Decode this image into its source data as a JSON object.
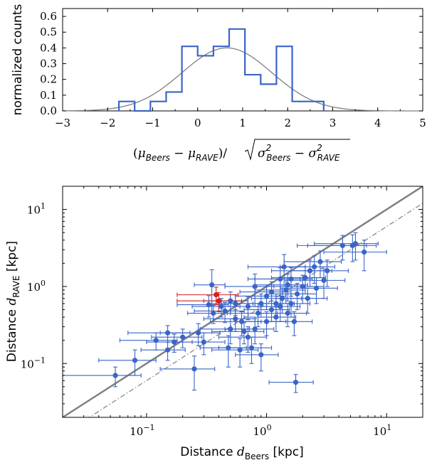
{
  "chart_data": [
    {
      "type": "histogram",
      "xlabel": "(μ_Beers − μ_RAVE)/√(σ²_Beers − σ²_RAVE)",
      "xlabel_parts": {
        "open": "(",
        "mu": "μ",
        "beers": "Beers",
        "minus": "−",
        "rave": "RAVE",
        "close": ")/",
        "sigma": "σ",
        "sq": "2"
      },
      "ylabel": "normalized counts",
      "xlim": [
        -3,
        5
      ],
      "ylim": [
        0,
        0.65
      ],
      "xticks": [
        "−3",
        "−2",
        "−1",
        "0",
        "1",
        "2",
        "3",
        "4",
        "5"
      ],
      "xtick_values": [
        -3,
        -2,
        -1,
        0,
        1,
        2,
        3,
        4,
        5
      ],
      "yticks": [
        "0.0",
        "0.1",
        "0.2",
        "0.3",
        "0.4",
        "0.5",
        "0.6"
      ],
      "ytick_values": [
        0,
        0.1,
        0.2,
        0.3,
        0.4,
        0.5,
        0.6
      ],
      "bin_edges": [
        -1.75,
        -1.4,
        -1.05,
        -0.7,
        -0.35,
        0.0,
        0.35,
        0.7,
        1.05,
        1.4,
        1.75,
        2.1,
        2.45,
        2.8
      ],
      "counts": [
        0.06,
        0.0,
        0.06,
        0.12,
        0.41,
        0.35,
        0.41,
        0.52,
        0.23,
        0.17,
        0.41,
        0.06,
        0.06
      ],
      "gaussian": {
        "mean": 0.65,
        "sigma": 1.0,
        "amplitude": 0.4
      },
      "colors": {
        "histogram": "#3a64c8",
        "gaussian": "#808080"
      }
    },
    {
      "type": "scatter",
      "xscale": "log",
      "yscale": "log",
      "xlabel": "Distance d_Beers [kpc]",
      "xlabel_parts": {
        "word": "Distance ",
        "var": "d",
        "sub": "Beers",
        "unit": " [kpc]"
      },
      "ylabel": "Distance d_RAVE [kpc]",
      "ylabel_parts": {
        "word": "Distance ",
        "var": "d",
        "sub": "RAVE",
        "unit": " [kpc]"
      },
      "xlim": [
        0.02,
        20
      ],
      "ylim": [
        0.02,
        20
      ],
      "ticks": [
        {
          "value": 0.1,
          "base": "10",
          "exp": "−1"
        },
        {
          "value": 1,
          "base": "10",
          "exp": "0"
        },
        {
          "value": 10,
          "base": "10",
          "exp": "1"
        }
      ],
      "lines": [
        {
          "name": "one-to-one",
          "slope_factor": 1.0,
          "style": "solid",
          "color": "#808080"
        },
        {
          "name": "scaled",
          "slope_factor": 0.6,
          "style": "dashdot",
          "color": "#808080"
        }
      ],
      "colors": {
        "points": "#3a64c8",
        "highlight": "#d42020"
      },
      "points": [
        [
          0.055,
          0.07,
          0.035,
          0.02
        ],
        [
          0.08,
          0.11,
          0.04,
          0.04
        ],
        [
          0.12,
          0.2,
          0.06,
          0.05
        ],
        [
          0.15,
          0.25,
          0.08,
          0.06
        ],
        [
          0.15,
          0.15,
          0.06,
          0.04
        ],
        [
          0.17,
          0.19,
          0.07,
          0.05
        ],
        [
          0.2,
          0.22,
          0.09,
          0.06
        ],
        [
          0.25,
          0.085,
          0.12,
          0.04
        ],
        [
          0.27,
          0.25,
          0.14,
          0.08
        ],
        [
          0.3,
          0.19,
          0.15,
          0.06
        ],
        [
          0.33,
          0.58,
          0.15,
          0.18
        ],
        [
          0.35,
          1.05,
          0.1,
          0.6
        ],
        [
          0.36,
          0.45,
          0.14,
          0.12
        ],
        [
          0.42,
          0.55,
          0.18,
          0.15
        ],
        [
          0.45,
          0.48,
          0.2,
          0.14
        ],
        [
          0.48,
          0.16,
          0.2,
          0.07
        ],
        [
          0.5,
          0.28,
          0.22,
          0.1
        ],
        [
          0.5,
          0.65,
          0.2,
          0.2
        ],
        [
          0.55,
          0.6,
          0.22,
          0.18
        ],
        [
          0.55,
          0.38,
          0.25,
          0.12
        ],
        [
          0.6,
          0.15,
          0.25,
          0.06
        ],
        [
          0.62,
          0.35,
          0.28,
          0.12
        ],
        [
          0.65,
          0.26,
          0.3,
          0.08
        ],
        [
          0.7,
          0.22,
          0.3,
          0.08
        ],
        [
          0.7,
          0.55,
          0.3,
          0.18
        ],
        [
          0.75,
          0.16,
          0.35,
          0.06
        ],
        [
          0.8,
          1.0,
          0.35,
          0.45
        ],
        [
          0.8,
          0.28,
          0.35,
          0.1
        ],
        [
          0.85,
          0.45,
          0.38,
          0.15
        ],
        [
          0.9,
          0.13,
          0.35,
          0.05
        ],
        [
          0.9,
          0.6,
          0.4,
          0.2
        ],
        [
          1.0,
          0.75,
          0.45,
          0.25
        ],
        [
          1.0,
          0.35,
          0.45,
          0.12
        ],
        [
          1.1,
          0.5,
          0.45,
          0.15
        ],
        [
          1.1,
          0.85,
          0.5,
          0.3
        ],
        [
          1.2,
          0.6,
          0.5,
          0.2
        ],
        [
          1.2,
          0.4,
          0.55,
          0.14
        ],
        [
          1.3,
          1.25,
          0.6,
          0.5
        ],
        [
          1.3,
          0.55,
          0.6,
          0.2
        ],
        [
          1.35,
          0.7,
          0.6,
          0.25
        ],
        [
          1.4,
          1.8,
          0.7,
          0.8
        ],
        [
          1.45,
          0.9,
          0.65,
          0.3
        ],
        [
          1.5,
          0.45,
          0.65,
          0.15
        ],
        [
          1.5,
          1.05,
          0.7,
          0.4
        ],
        [
          1.6,
          0.6,
          0.7,
          0.2
        ],
        [
          1.6,
          1.25,
          0.8,
          0.5
        ],
        [
          1.7,
          0.35,
          0.7,
          0.12
        ],
        [
          1.75,
          0.057,
          0.7,
          0.015
        ],
        [
          1.8,
          0.8,
          0.8,
          0.3
        ],
        [
          2.0,
          1.0,
          1.0,
          0.4
        ],
        [
          2.1,
          1.3,
          1.0,
          0.5
        ],
        [
          2.2,
          0.7,
          1.0,
          0.25
        ],
        [
          2.3,
          1.6,
          1.2,
          0.6
        ],
        [
          2.5,
          1.8,
          1.2,
          0.7
        ],
        [
          2.6,
          0.95,
          1.3,
          0.35
        ],
        [
          2.8,
          2.1,
          1.4,
          0.8
        ],
        [
          3.0,
          1.2,
          1.5,
          0.5
        ],
        [
          3.2,
          1.6,
          1.6,
          0.6
        ],
        [
          4.3,
          3.4,
          2.5,
          1.2
        ],
        [
          5.2,
          3.4,
          3.0,
          1.3
        ],
        [
          5.5,
          3.6,
          3.0,
          1.4
        ],
        [
          6.5,
          2.8,
          3.5,
          1.2
        ]
      ],
      "highlighted_points": [
        [
          0.38,
          0.78,
          0.2,
          0.2
        ],
        [
          0.4,
          0.65,
          0.22,
          0.18
        ]
      ]
    }
  ]
}
